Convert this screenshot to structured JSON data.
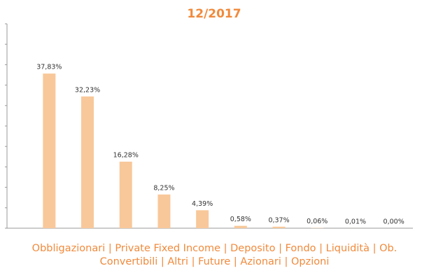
{
  "chart_data": {
    "type": "bar",
    "title": "12/2017",
    "categories": [
      "Obbligazionari",
      "Private Fixed Income",
      "Deposito",
      "Fondo",
      "Liquidità",
      "Ob. Convertibili",
      "Altri",
      "Future",
      "Azionari",
      "Opzioni"
    ],
    "values": [
      37.83,
      32.23,
      16.28,
      8.25,
      4.39,
      0.58,
      0.37,
      0.06,
      0.01,
      0.0
    ],
    "value_labels": [
      "37,83%",
      "32,23%",
      "16,28%",
      "8,25%",
      "4,39%",
      "0,58%",
      "0,37%",
      "0,06%",
      "0,01%",
      "0,00%"
    ],
    "color": "#f8c89a",
    "ylim": [
      0,
      50
    ],
    "yticks": [
      0,
      5,
      10,
      15,
      20,
      25,
      30,
      35,
      40,
      45,
      50
    ],
    "legend_separator": "|"
  }
}
